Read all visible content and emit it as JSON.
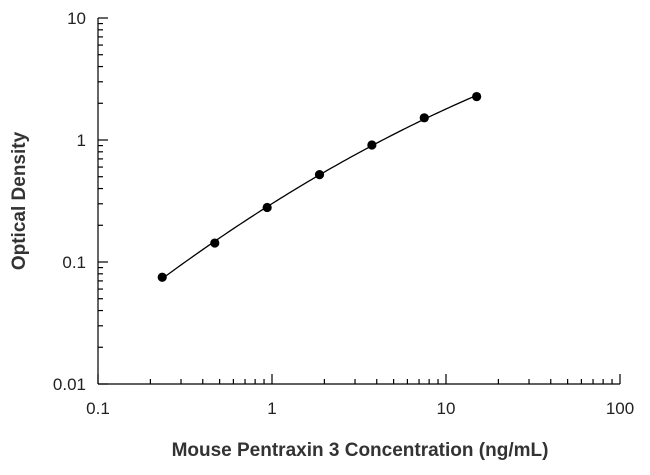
{
  "chart_data": {
    "type": "scatter",
    "title": "",
    "xlabel": "Mouse Pentraxin 3 Concentration (ng/mL)",
    "ylabel": "Optical Density",
    "x_scale": "log",
    "y_scale": "log",
    "xlim": [
      0.1,
      100
    ],
    "ylim": [
      0.01,
      10
    ],
    "x_ticks": [
      0.1,
      1,
      10,
      100
    ],
    "x_tick_labels": [
      "0.1",
      "1",
      "10",
      "100"
    ],
    "y_ticks": [
      0.01,
      0.1,
      1,
      10
    ],
    "y_tick_labels": [
      "0.01",
      "0.1",
      "1",
      "10"
    ],
    "grid": false,
    "legend": "none",
    "fit_line": true,
    "point_color": "#000000",
    "line_color": "#000000",
    "series": [
      {
        "x": [
          0.234,
          0.469,
          0.938,
          1.875,
          3.75,
          7.5,
          15
        ],
        "y": [
          0.075,
          0.143,
          0.28,
          0.52,
          0.91,
          1.52,
          2.27
        ]
      }
    ]
  }
}
